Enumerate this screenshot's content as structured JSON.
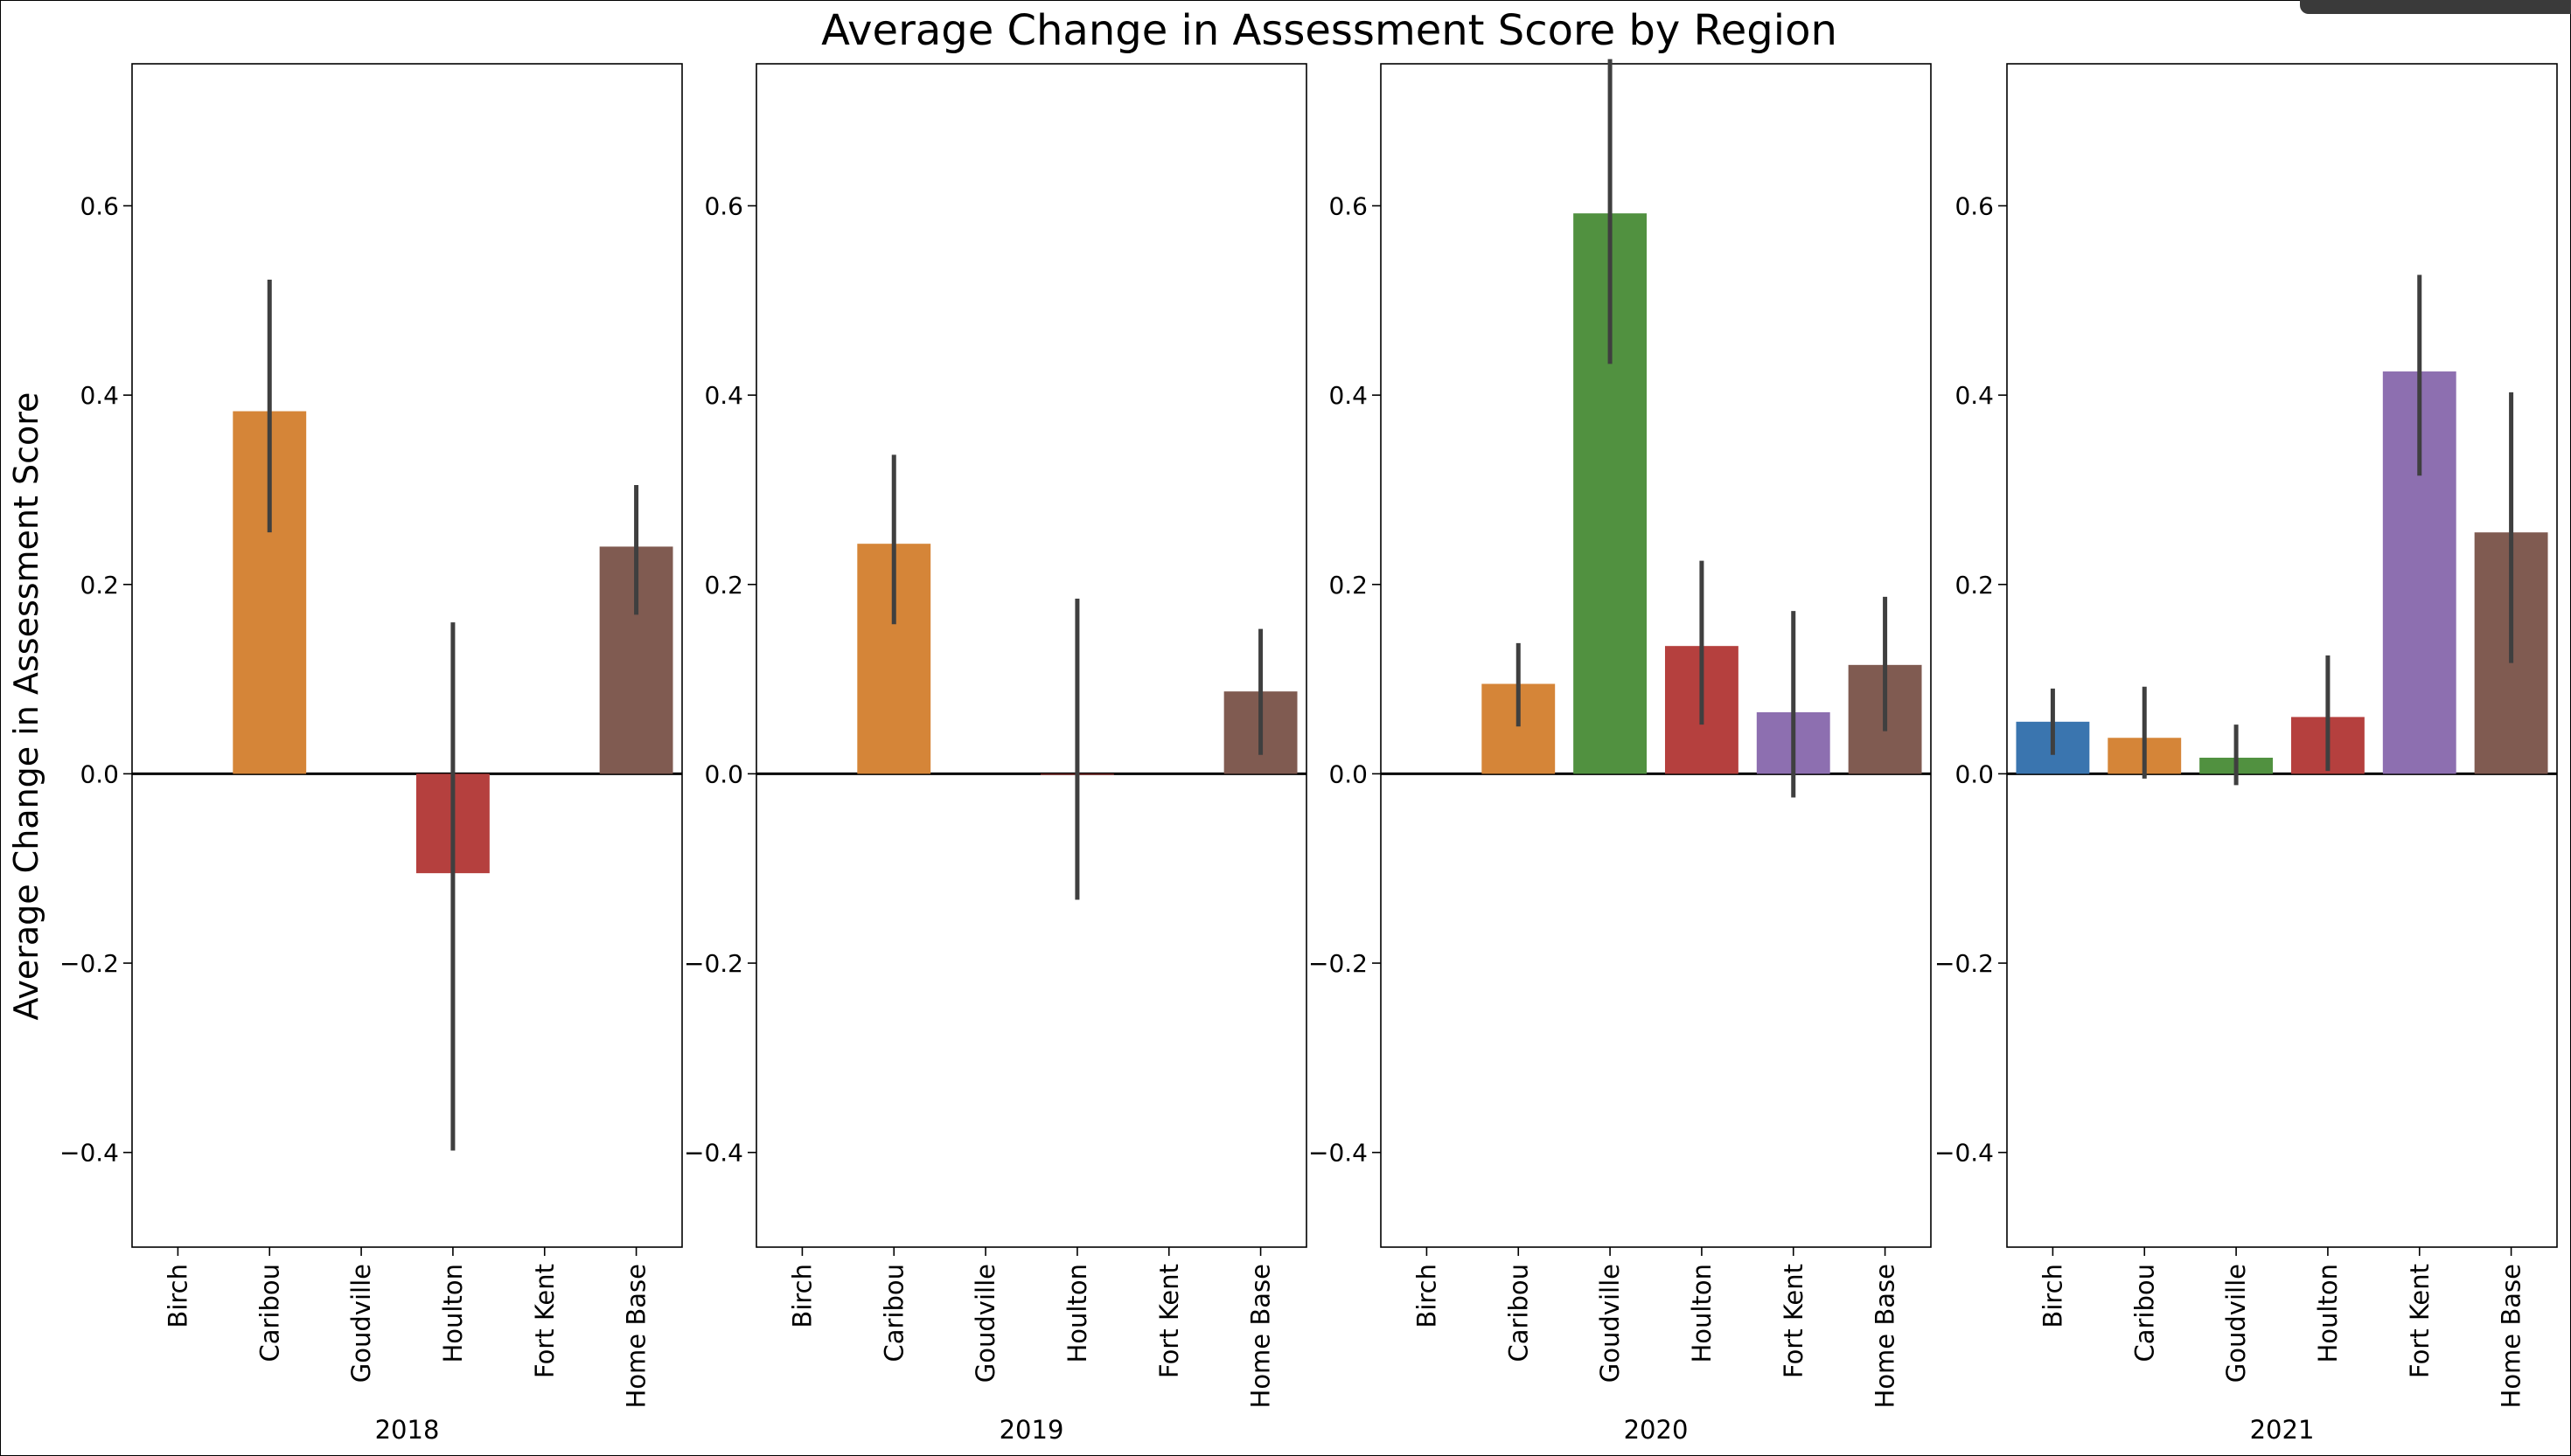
{
  "chart_data": {
    "type": "bar",
    "title": "Average Change in Assessment Score by Region",
    "ylabel": "Average Change in Assessment Score",
    "ylim": [
      -0.5,
      0.75
    ],
    "yticks": [
      -0.4,
      -0.2,
      0.0,
      0.2,
      0.4,
      0.6
    ],
    "ytick_labels": [
      "−0.4",
      "−0.2",
      "0.0",
      "0.2",
      "0.4",
      "0.6"
    ],
    "categories": [
      "Birch",
      "Caribou",
      "Goudville",
      "Houlton",
      "Fort Kent",
      "Home Base"
    ],
    "colors": {
      "Birch": "#3a75af",
      "Caribou": "#d58538",
      "Goudville": "#519140",
      "Houlton": "#b5403e",
      "Fort Kent": "#8d6fb0",
      "Home Base": "#805b51"
    },
    "error_color": "#3f3f3f",
    "zero_line": true,
    "grid": false,
    "panels": [
      {
        "xlabel": "2018",
        "values": [
          null,
          0.383,
          null,
          -0.105,
          null,
          0.24
        ],
        "err_low": [
          null,
          0.255,
          null,
          -0.398,
          null,
          0.168
        ],
        "err_high": [
          null,
          0.522,
          null,
          0.16,
          null,
          0.305
        ]
      },
      {
        "xlabel": "2019",
        "values": [
          null,
          0.243,
          null,
          0.0,
          null,
          0.087
        ],
        "err_low": [
          null,
          0.158,
          null,
          -0.133,
          null,
          0.02
        ],
        "err_high": [
          null,
          0.337,
          null,
          0.185,
          null,
          0.153
        ]
      },
      {
        "xlabel": "2020",
        "values": [
          null,
          0.095,
          0.592,
          0.135,
          0.065,
          0.115
        ],
        "err_low": [
          null,
          0.05,
          0.433,
          0.052,
          -0.025,
          0.045
        ],
        "err_high": [
          null,
          0.138,
          0.755,
          0.225,
          0.172,
          0.187
        ]
      },
      {
        "xlabel": "2021",
        "values": [
          0.055,
          0.038,
          0.017,
          0.06,
          0.425,
          0.255
        ],
        "err_low": [
          0.02,
          -0.005,
          -0.012,
          0.003,
          0.315,
          0.117
        ],
        "err_high": [
          0.09,
          0.092,
          0.052,
          0.125,
          0.527,
          0.403
        ]
      }
    ]
  }
}
